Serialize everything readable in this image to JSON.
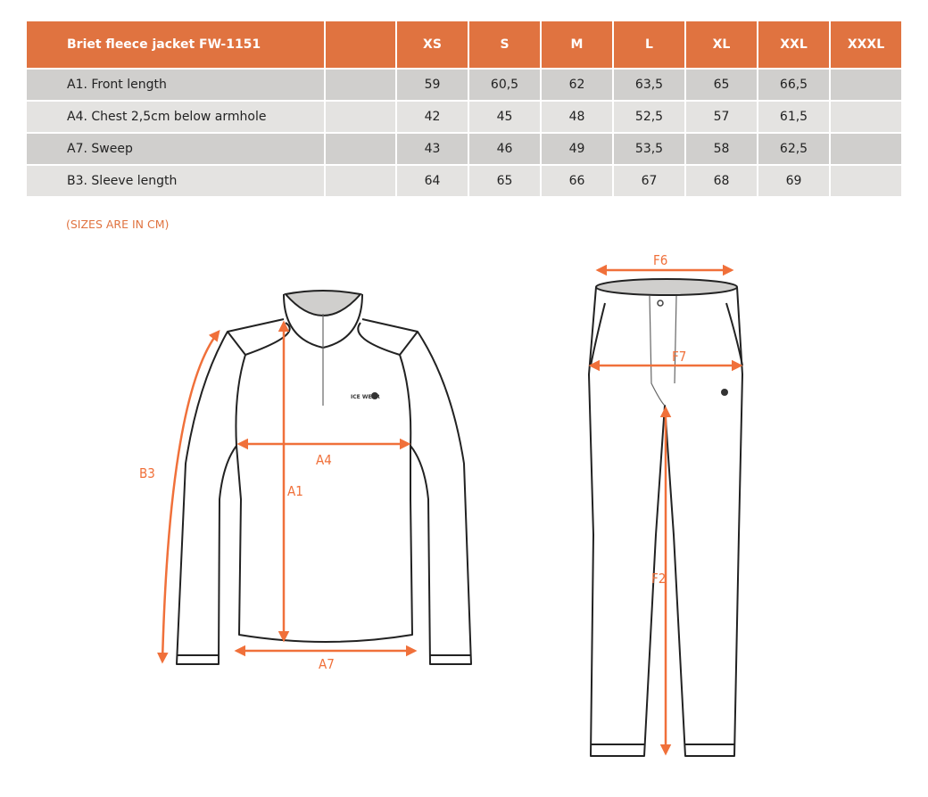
{
  "table": {
    "title": "Briet fleece jacket FW-1151",
    "sizes": [
      "XS",
      "S",
      "M",
      "L",
      "XL",
      "XXL",
      "XXXL"
    ],
    "rows": [
      {
        "label": "A1. Front length",
        "values": [
          "59",
          "60,5",
          "62",
          "63,5",
          "65",
          "66,5",
          ""
        ]
      },
      {
        "label": "A4. Chest 2,5cm below armhole",
        "values": [
          "42",
          "45",
          "48",
          "52,5",
          "57",
          "61,5",
          ""
        ]
      },
      {
        "label": "A7. Sweep",
        "values": [
          "43",
          "46",
          "49",
          "53,5",
          "58",
          "62,5",
          ""
        ]
      },
      {
        "label": "B3. Sleeve length",
        "values": [
          "64",
          "65",
          "66",
          "67",
          "68",
          "69",
          ""
        ]
      }
    ]
  },
  "note": "(SIZES ARE IN CM)",
  "diagram": {
    "jacket_labels": {
      "a1": "A1",
      "a4": "A4",
      "a7": "A7",
      "b3": "B3"
    },
    "pants_labels": {
      "f2": "F2",
      "f6": "F6",
      "f7": "F7"
    },
    "logo_text": "ICE WEAR",
    "accent_color": "#f0703a",
    "header_color": "#e07340"
  }
}
